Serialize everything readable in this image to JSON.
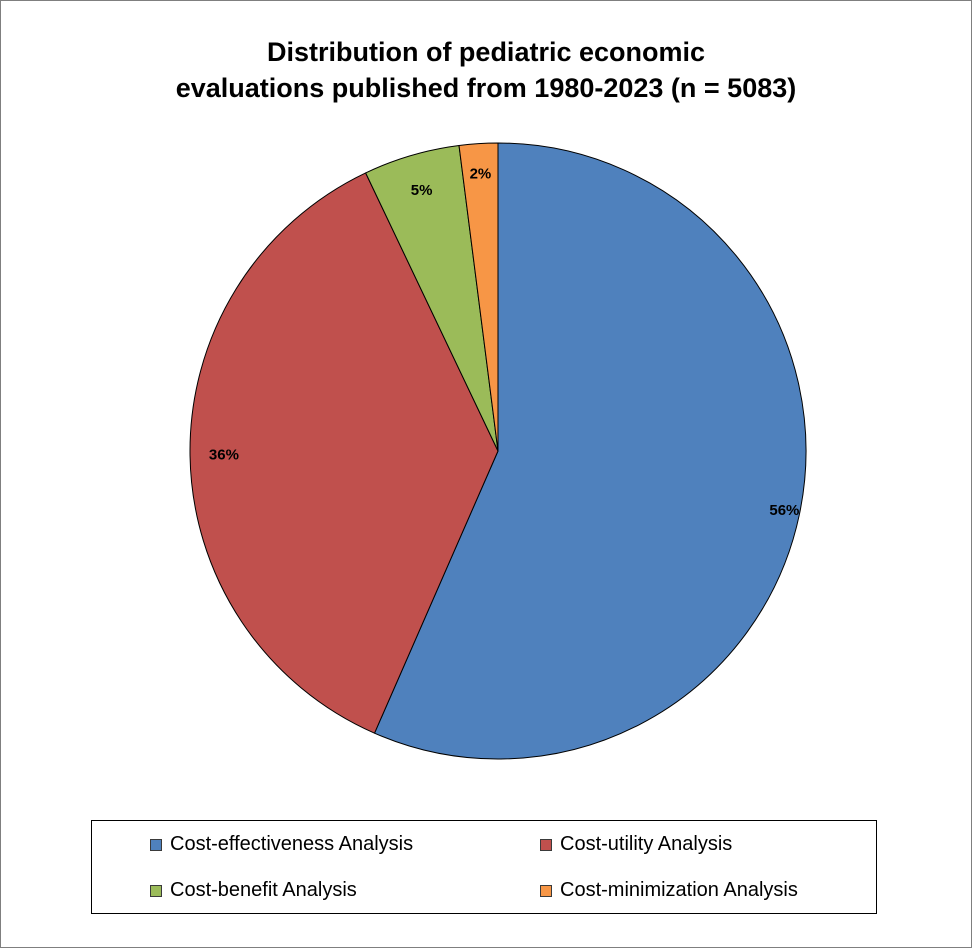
{
  "chart_data": {
    "type": "pie",
    "title_lines": [
      "Distribution of pediatric economic",
      "evaluations published from 1980-2023 (n = 5083)"
    ],
    "slices": [
      {
        "name": "Cost-effectiveness Analysis",
        "value": 56,
        "label": "56%",
        "color": "#4f81bd"
      },
      {
        "name": "Cost-utility Analysis",
        "value": 36,
        "label": "36%",
        "color": "#c0504d"
      },
      {
        "name": "Cost-benefit Analysis",
        "value": 5,
        "label": "5%",
        "color": "#9bbb59"
      },
      {
        "name": "Cost-minimization Analysis",
        "value": 2,
        "label": "2%",
        "color": "#f79646"
      }
    ],
    "start_angle": "12 o'clock",
    "direction": "clockwise",
    "legend_position": "bottom"
  }
}
